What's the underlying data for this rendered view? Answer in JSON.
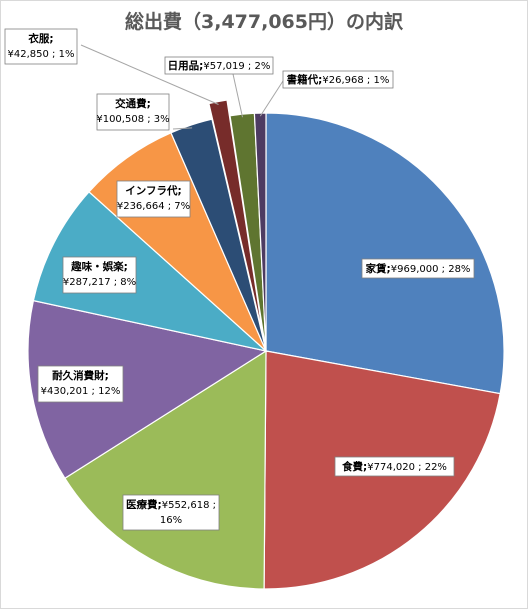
{
  "chart_data": {
    "type": "pie",
    "title": "総出費（3,477,065円）の内訳",
    "slices": [
      {
        "name": "家賃",
        "value": 969000,
        "value_label": "¥969,000",
        "percent": "28%",
        "color": "#4F81BD"
      },
      {
        "name": "食費",
        "value": 774020,
        "value_label": "¥774,020",
        "percent": "22%",
        "color": "#C0504D"
      },
      {
        "name": "医療費",
        "value": 552618,
        "value_label": "¥552,618",
        "percent": "16%",
        "color": "#9BBB59"
      },
      {
        "name": "耐久消費財",
        "value": 430201,
        "value_label": "¥430,201",
        "percent": "12%",
        "color": "#8064A2"
      },
      {
        "name": "趣味・娯楽",
        "value": 287217,
        "value_label": "¥287,217",
        "percent": "8%",
        "color": "#4BACC6"
      },
      {
        "name": "インフラ代",
        "value": 236664,
        "value_label": "¥236,664",
        "percent": "7%",
        "color": "#F79646"
      },
      {
        "name": "交通費",
        "value": 100508,
        "value_label": "¥100,508",
        "percent": "3%",
        "color": "#2C4D75"
      },
      {
        "name": "衣服",
        "value": 42850,
        "value_label": "¥42,850",
        "percent": "1%",
        "color": "#772C2A"
      },
      {
        "name": "日用品",
        "value": 57019,
        "value_label": "¥57,019",
        "percent": "2%",
        "color": "#5F7530"
      },
      {
        "name": "書籍代",
        "value": 26968,
        "value_label": "¥26,968",
        "percent": "1%",
        "color": "#4D3B62"
      }
    ]
  }
}
